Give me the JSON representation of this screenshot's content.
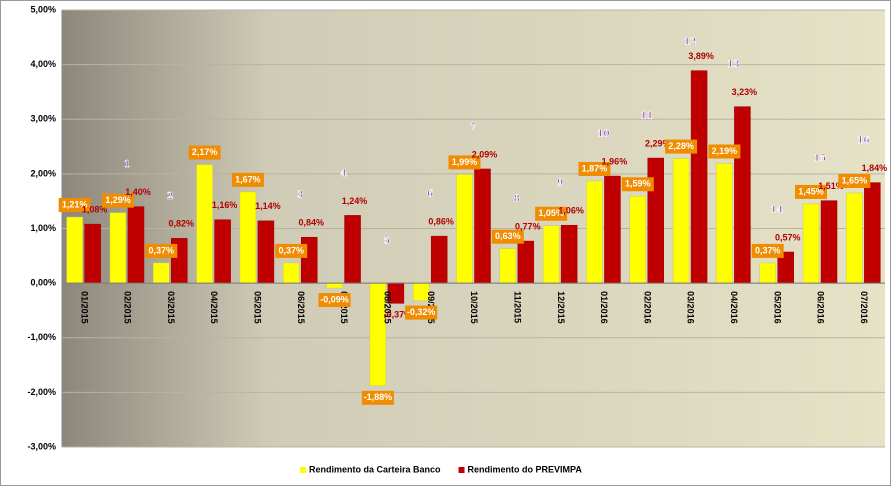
{
  "chart_data": {
    "type": "bar",
    "categories": [
      "01/2015",
      "02/2015",
      "03/2015",
      "04/2015",
      "05/2015",
      "06/2015",
      "07/2015",
      "08/2015",
      "09/2015",
      "10/2015",
      "11/2015",
      "12/2015",
      "01/2016",
      "02/2016",
      "03/2016",
      "04/2016",
      "05/2016",
      "06/2016",
      "07/2016"
    ],
    "series": [
      {
        "name": "Rendimento da Carteira Banco",
        "color": "#ffff00",
        "values": [
          1.21,
          1.29,
          0.37,
          2.17,
          1.67,
          0.37,
          -0.09,
          -1.88,
          -0.32,
          1.99,
          0.63,
          1.05,
          1.87,
          1.59,
          2.28,
          2.19,
          0.37,
          1.45,
          1.65
        ],
        "value_labels": [
          "1,21%",
          "1,29%",
          "0,37%",
          "2,17%",
          "1,67%",
          "0,37%",
          "-0,09%",
          "-1,88%",
          "-0,32%",
          "1,99%",
          "0,63%",
          "1,05%",
          "1,87%",
          "1,59%",
          "2,28%",
          "2,19%",
          "0,37%",
          "1,45%",
          "1,65%"
        ]
      },
      {
        "name": "Rendimento do PREVIMPA",
        "color": "#c00000",
        "values": [
          1.08,
          1.4,
          0.82,
          1.16,
          1.14,
          0.84,
          1.24,
          -0.37,
          0.86,
          2.09,
          0.77,
          1.06,
          1.96,
          2.29,
          3.89,
          3.23,
          0.57,
          1.51,
          1.84
        ],
        "value_labels": [
          "1,08%",
          "1,40%",
          "0,82%",
          "1,16%",
          "1,14%",
          "0,84%",
          "1,24%",
          "-0,37%",
          "0,86%",
          "2,09%",
          "0,77%",
          "1,06%",
          "1,96%",
          "2,29%",
          "3,89%",
          "3,23%",
          "0,57%",
          "1,51%",
          "1,84%"
        ]
      }
    ],
    "ylim": [
      -3,
      5
    ],
    "yticks": [
      {
        "value": -3,
        "label": "-3,00%"
      },
      {
        "value": -2,
        "label": "-2,00%"
      },
      {
        "value": -1,
        "label": "-1,00%"
      },
      {
        "value": 0,
        "label": "0,00%"
      },
      {
        "value": 1,
        "label": "1,00%"
      },
      {
        "value": 2,
        "label": "2,00%"
      },
      {
        "value": 3,
        "label": "3,00%"
      },
      {
        "value": 4,
        "label": "4,00%"
      },
      {
        "value": 5,
        "label": "5,00%"
      }
    ],
    "grid": true,
    "legend": "bottom",
    "annotations": [
      {
        "text": "1",
        "category": "02/2015"
      },
      {
        "text": "2",
        "category": "03/2015"
      },
      {
        "text": "3",
        "category": "06/2015"
      },
      {
        "text": "4",
        "category": "07/2015"
      },
      {
        "text": "5",
        "category": "08/2015"
      },
      {
        "text": "6",
        "category": "09/2015"
      },
      {
        "text": "7",
        "category": "10/2015"
      },
      {
        "text": "8",
        "category": "11/2015"
      },
      {
        "text": "9",
        "category": "12/2015"
      },
      {
        "text": "10",
        "category": "01/2016"
      },
      {
        "text": "11",
        "category": "02/2016"
      },
      {
        "text": "12",
        "category": "03/2016"
      },
      {
        "text": "13",
        "category": "04/2016"
      },
      {
        "text": "14",
        "category": "05/2016"
      },
      {
        "text": "15",
        "category": "06/2016"
      },
      {
        "text": "16",
        "category": "07/2016"
      }
    ]
  }
}
